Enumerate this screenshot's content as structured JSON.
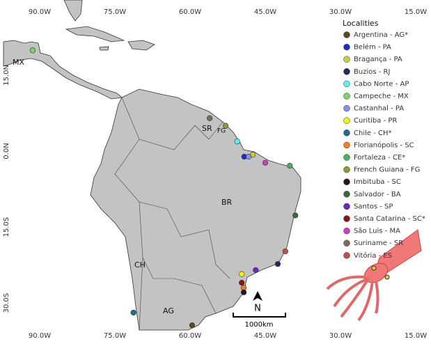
{
  "map": {
    "xticks": [
      {
        "value": -90,
        "label": "90.0W"
      },
      {
        "value": -75,
        "label": "75.0W"
      },
      {
        "value": -60,
        "label": "60.0W"
      },
      {
        "value": -45,
        "label": "45.0W"
      },
      {
        "value": -30,
        "label": "30.0W"
      },
      {
        "value": -15,
        "label": "15.0W"
      }
    ],
    "yticks": [
      {
        "value": 15,
        "label": "15.0N"
      },
      {
        "value": 0,
        "label": "0.0N"
      },
      {
        "value": -15,
        "label": "15.0S"
      },
      {
        "value": -30,
        "label": "30.0S"
      }
    ],
    "legend_title": "Localities",
    "localities": [
      {
        "name": "Argentina - AG*",
        "color": "#5c4a1e",
        "lon": -59.6,
        "lat": -34.4
      },
      {
        "name": "Belém - PA",
        "color": "#1a2fc9",
        "lon": -49.2,
        "lat": -1.1
      },
      {
        "name": "Bragança - PA",
        "color": "#c9cc4a",
        "lon": -47.5,
        "lat": -0.7
      },
      {
        "name": "Buzios - RJ",
        "color": "#2a2a5a",
        "lon": -42.5,
        "lat": -22.3
      },
      {
        "name": "Cabo Norte - AP",
        "color": "#5ef0f0",
        "lon": -50.6,
        "lat": 1.9
      },
      {
        "name": "Campeche - MX",
        "color": "#78d46a",
        "lon": -91.4,
        "lat": 19.9
      },
      {
        "name": "Castanhal - PA",
        "color": "#8c8ce6",
        "lon": -48.3,
        "lat": -1.1
      },
      {
        "name": "Curitiba - PR",
        "color": "#f0f020",
        "lon": -49.7,
        "lat": -24.3
      },
      {
        "name": "Chile - CH*",
        "color": "#1a6f8f",
        "lon": -71.3,
        "lat": -31.9
      },
      {
        "name": "Florianópolis - SC",
        "color": "#f07f2a",
        "lon": -49.3,
        "lat": -27.0
      },
      {
        "name": "Fortaleza - CE*",
        "color": "#4caf5a",
        "lon": -40.1,
        "lat": -2.9
      },
      {
        "name": "French Guiana - FG",
        "color": "#8a9a3a",
        "lon": -52.9,
        "lat": 5.0
      },
      {
        "name": "Imbituba - SC",
        "color": "#2a1418",
        "lon": -49.3,
        "lat": -27.9
      },
      {
        "name": "Salvador - BA",
        "color": "#3a6a3a",
        "lon": -39.0,
        "lat": -12.7
      },
      {
        "name": "Santos - SP",
        "color": "#6a2ac0",
        "lon": -46.9,
        "lat": -23.5
      },
      {
        "name": "Santa Catarina - SC*",
        "color": "#8a1414",
        "lon": -49.7,
        "lat": -26.0
      },
      {
        "name": "São Luis - MA",
        "color": "#c840c0",
        "lon": -45.0,
        "lat": -2.3
      },
      {
        "name": "Suriname - SR",
        "color": "#7a6a5a",
        "lon": -56.1,
        "lat": 6.5
      },
      {
        "name": "Vitória - ES",
        "color": "#c05050",
        "lon": -41.0,
        "lat": -19.8
      }
    ],
    "region_labels": [
      "MX",
      "SR",
      "FG",
      "BR",
      "CH",
      "AG"
    ],
    "scale_label": "1000km",
    "north": "N"
  }
}
